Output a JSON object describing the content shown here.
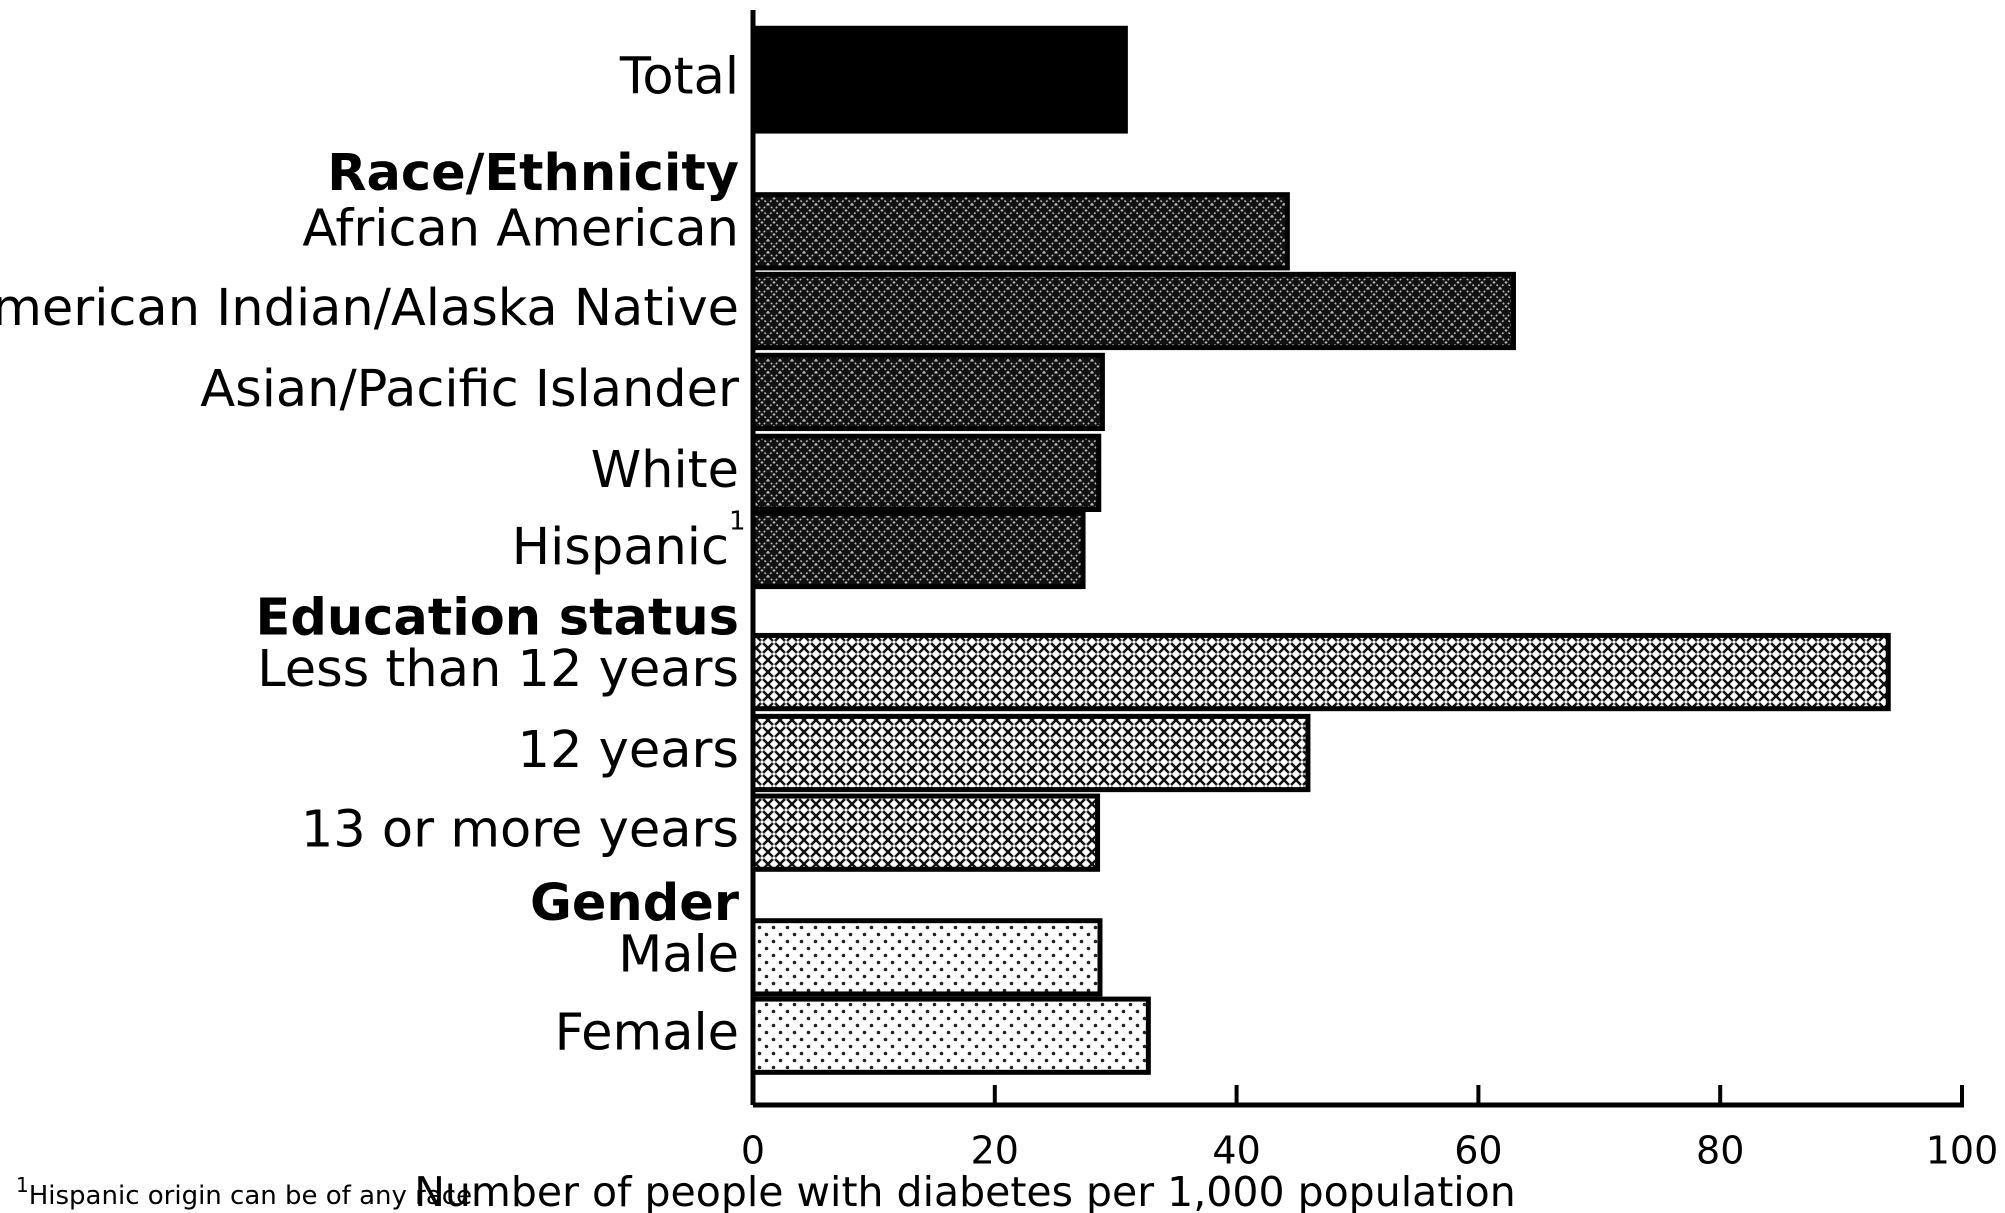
{
  "chart_data": {
    "type": "bar",
    "groups": [
      {
        "categories": [
          "Total"
        ],
        "values": [
          30.8
        ]
      },
      {
        "name": "Race/Ethnicity",
        "categories": [
          "African American",
          "American Indian/Alaska Native",
          "Asian/Pacific Islander",
          "White",
          "Hispanic"
        ],
        "values": [
          44.2,
          62.9,
          28.9,
          28.6,
          27.3
        ]
      },
      {
        "name": "Education status",
        "categories": [
          "Less than 12 years",
          "12 years",
          "13 or more years"
        ],
        "values": [
          93.9,
          45.9,
          28.5
        ]
      },
      {
        "name": "Gender",
        "categories": [
          "Male",
          "Female"
        ],
        "values": [
          28.7,
          32.7
        ]
      }
    ],
    "xlabel": "Number of people with diabetes per 1,000 population",
    "xlim": [
      0,
      100
    ],
    "xticks": [
      0,
      20,
      40,
      60,
      80,
      100
    ],
    "footnote": {
      "marker": "1",
      "text": "Hispanic origin can be of any race."
    }
  }
}
